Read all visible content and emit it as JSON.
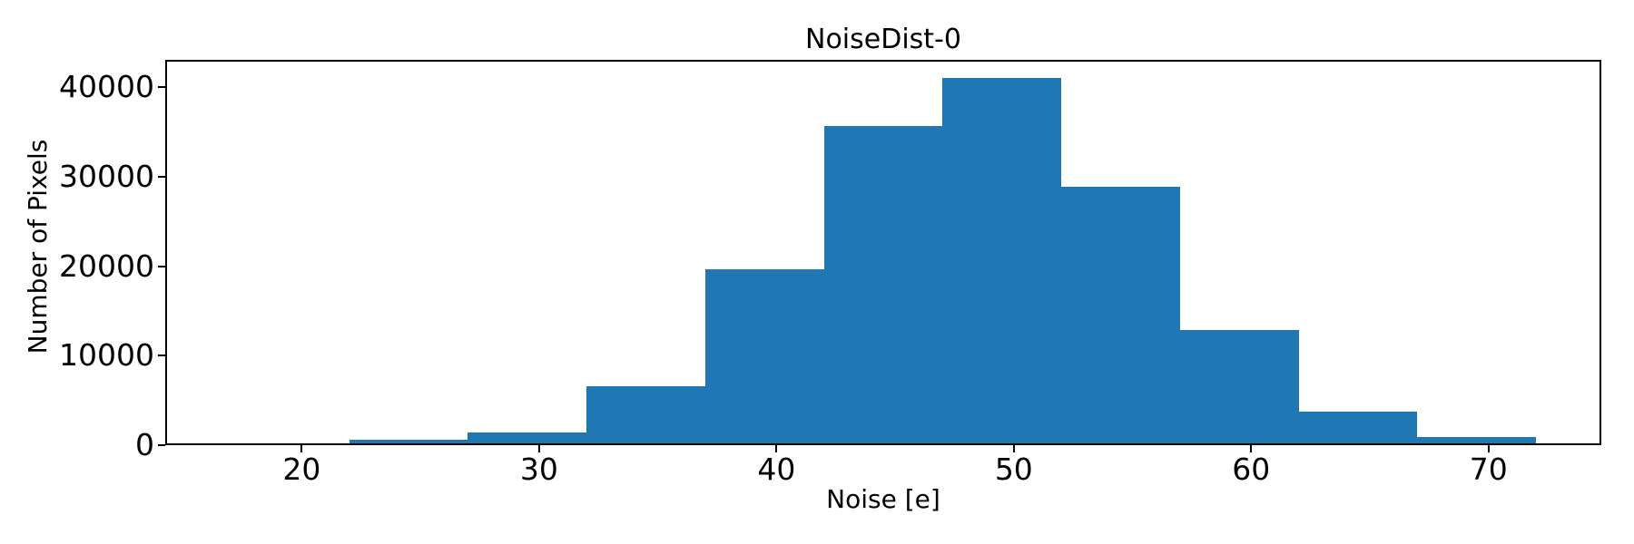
{
  "figure": {
    "title": "NoiseDist-0",
    "xlabel": "Noise [e]",
    "ylabel": "Number of Pixels"
  },
  "chart_data": {
    "type": "bar",
    "subtype": "histogram",
    "title": "NoiseDist-0",
    "xlabel": "Noise [e]",
    "ylabel": "Number of Pixels",
    "bin_edges": [
      17,
      22,
      27,
      32,
      37,
      42,
      47,
      52,
      57,
      62,
      67,
      72
    ],
    "counts": [
      150,
      600,
      1450,
      6600,
      19700,
      35700,
      41000,
      28900,
      12900,
      3750,
      940
    ],
    "xticks": [
      20,
      30,
      40,
      50,
      60,
      70
    ],
    "yticks": [
      0,
      10000,
      20000,
      30000,
      40000
    ],
    "xlim": [
      14.25,
      74.75
    ],
    "ylim": [
      0,
      43050
    ],
    "bar_color": "#1f77b4",
    "grid": false,
    "legend_position": "none",
    "background_color": "#ffffff",
    "text_color": "#000000"
  }
}
